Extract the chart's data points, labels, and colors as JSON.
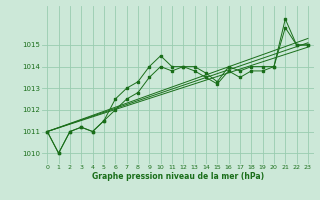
{
  "hours": [
    0,
    1,
    2,
    3,
    4,
    5,
    6,
    7,
    8,
    9,
    10,
    11,
    12,
    13,
    14,
    15,
    16,
    17,
    18,
    19,
    20,
    21,
    22,
    23
  ],
  "pressure_main": [
    1011.0,
    1010.0,
    1011.0,
    1011.2,
    1011.0,
    1011.5,
    1012.5,
    1013.0,
    1013.3,
    1014.0,
    1014.5,
    1014.0,
    1014.0,
    1014.0,
    1013.7,
    1013.3,
    1014.0,
    1013.8,
    1014.0,
    1014.0,
    1014.0,
    1016.2,
    1015.0,
    1015.0
  ],
  "pressure_line2": [
    1011.0,
    1010.0,
    1011.0,
    1011.2,
    1011.0,
    1011.5,
    1012.0,
    1012.5,
    1012.8,
    1013.5,
    1014.0,
    1013.8,
    1014.0,
    1013.8,
    1013.5,
    1013.2,
    1013.8,
    1013.5,
    1013.8,
    1013.8,
    1014.0,
    1015.8,
    1015.0,
    1015.0
  ],
  "trend_x": [
    0,
    23
  ],
  "trend_values1": [
    1011.0,
    1015.1
  ],
  "trend_values2": [
    1011.0,
    1015.3
  ],
  "trend_values3": [
    1011.0,
    1014.9
  ],
  "bg_color": "#cce8d8",
  "grid_color": "#99ccb0",
  "line_color": "#1a6e1a",
  "xlabel": "Graphe pression niveau de la mer (hPa)",
  "xlabel_color": "#1a6e1a",
  "tick_color": "#1a6e1a",
  "ylim": [
    1009.5,
    1016.8
  ],
  "yticks": [
    1010,
    1011,
    1012,
    1013,
    1014,
    1015
  ],
  "xlim": [
    -0.5,
    23.5
  ],
  "xticks": [
    0,
    1,
    2,
    3,
    4,
    5,
    6,
    7,
    8,
    9,
    10,
    11,
    12,
    13,
    14,
    15,
    16,
    17,
    18,
    19,
    20,
    21,
    22,
    23
  ]
}
